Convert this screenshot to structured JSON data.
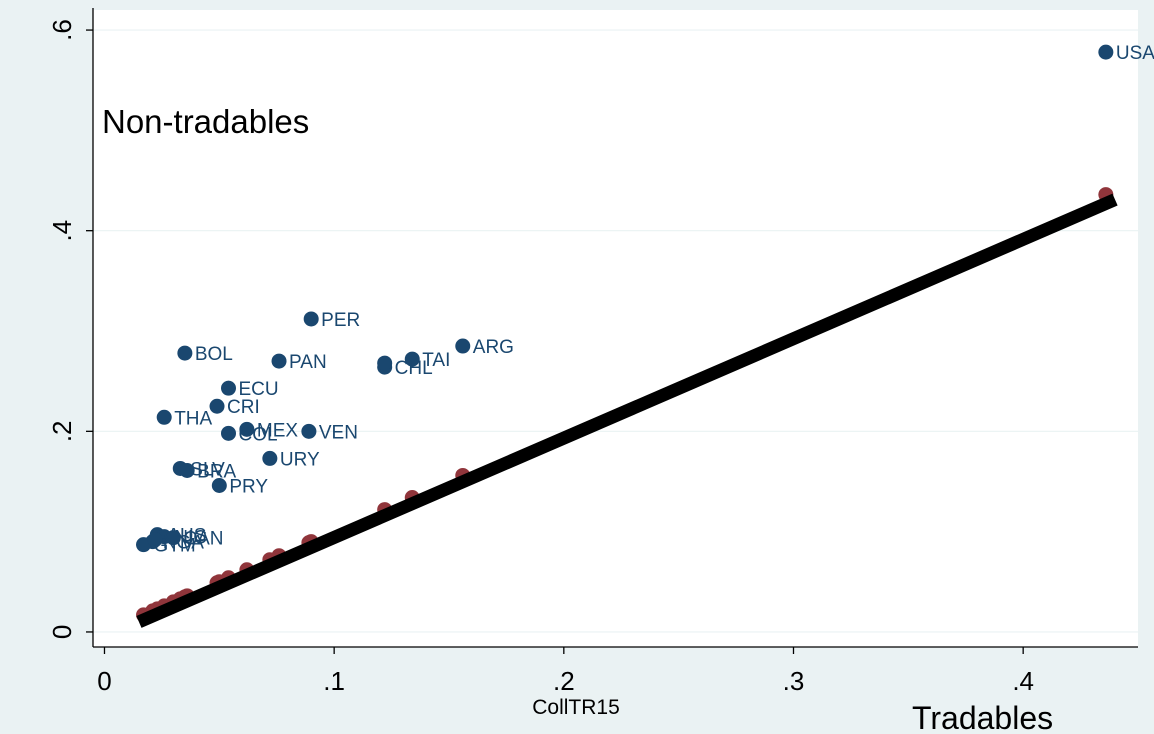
{
  "colors": {
    "background": "#eaf2f3",
    "plot_background": "#ffffff",
    "gridline": "#eaf2f3",
    "axis": "#000000",
    "points": "#1a476f",
    "fitted_points": "#90353b",
    "fitted_line": "#000000",
    "text": "#000000"
  },
  "chart_data": {
    "type": "scatter",
    "title": "",
    "annotation_top_left": "Non-tradables",
    "annotation_bottom_right": "Tradables",
    "xlabel": "CollTR15",
    "ylabel": "",
    "xlim": [
      -0.005,
      0.45
    ],
    "ylim": [
      -0.015,
      0.62
    ],
    "xticks": [
      0,
      0.1,
      0.2,
      0.3,
      0.4
    ],
    "xtick_labels": [
      "0",
      ".1",
      ".2",
      ".3",
      ".4"
    ],
    "yticks": [
      0,
      0.2,
      0.4,
      0.6
    ],
    "ytick_labels": [
      "0",
      ".2",
      ".4",
      ".6"
    ],
    "grid": true,
    "legend": "none",
    "series": [
      {
        "points": [
          {
            "label": "USA",
            "x": 0.436,
            "y": 0.578
          },
          {
            "label": "PER",
            "x": 0.09,
            "y": 0.312
          },
          {
            "label": "ARG",
            "x": 0.156,
            "y": 0.285
          },
          {
            "label": "TAI",
            "x": 0.134,
            "y": 0.272
          },
          {
            "label": "CHL",
            "x": 0.122,
            "y": 0.264
          },
          {
            "label": "",
            "x": 0.122,
            "y": 0.268
          },
          {
            "label": "BOL",
            "x": 0.035,
            "y": 0.278
          },
          {
            "label": "PAN",
            "x": 0.076,
            "y": 0.27
          },
          {
            "label": "ECU",
            "x": 0.054,
            "y": 0.243
          },
          {
            "label": "CRI",
            "x": 0.049,
            "y": 0.225
          },
          {
            "label": "THA",
            "x": 0.026,
            "y": 0.214
          },
          {
            "label": "MEX",
            "x": 0.062,
            "y": 0.202
          },
          {
            "label": "COL",
            "x": 0.054,
            "y": 0.198
          },
          {
            "label": "VEN",
            "x": 0.089,
            "y": 0.2
          },
          {
            "label": "URY",
            "x": 0.072,
            "y": 0.173
          },
          {
            "label": "SLV",
            "x": 0.033,
            "y": 0.163
          },
          {
            "label": "BRA",
            "x": 0.036,
            "y": 0.161
          },
          {
            "label": "PRY",
            "x": 0.05,
            "y": 0.146
          },
          {
            "label": "AUS",
            "x": 0.023,
            "y": 0.097
          },
          {
            "label": "NIC",
            "x": 0.026,
            "y": 0.095
          },
          {
            "label": "CAN",
            "x": 0.03,
            "y": 0.094
          },
          {
            "label": "NGA",
            "x": 0.021,
            "y": 0.09
          },
          {
            "label": "GTM",
            "x": 0.017,
            "y": 0.087
          },
          {
            "label": "",
            "x": 0.022,
            "y": 0.092
          }
        ]
      },
      {
        "x": [
          0.017,
          0.021,
          0.023,
          0.026,
          0.03,
          0.033,
          0.035,
          0.036,
          0.049,
          0.05,
          0.054,
          0.062,
          0.072,
          0.076,
          0.089,
          0.09,
          0.122,
          0.134,
          0.156,
          0.436
        ],
        "y": [
          0.017,
          0.021,
          0.023,
          0.026,
          0.03,
          0.033,
          0.035,
          0.036,
          0.049,
          0.05,
          0.054,
          0.062,
          0.072,
          0.076,
          0.089,
          0.09,
          0.122,
          0.134,
          0.156,
          0.436
        ]
      }
    ],
    "fitted_line": {
      "from": [
        0.015,
        0.01
      ],
      "to": [
        0.44,
        0.431
      ]
    }
  }
}
